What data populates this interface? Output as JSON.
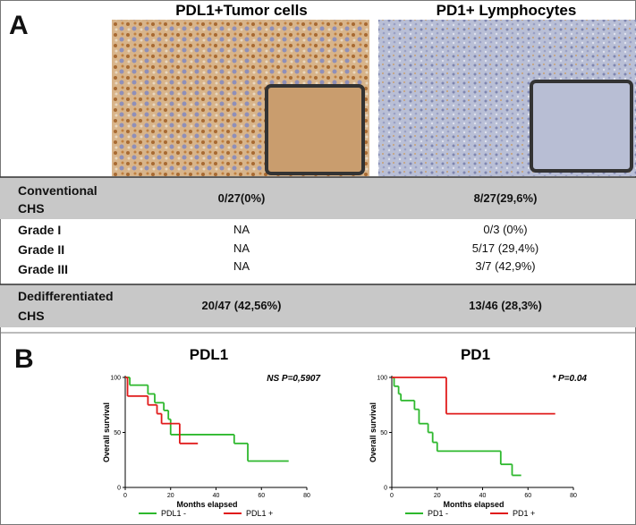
{
  "panel_a": {
    "label": "A",
    "columns": [
      "PDL1+Tumor cells",
      "PD1+ Lymphocytes"
    ],
    "rows": [
      [
        "Conventional CHS",
        "0/27(0%)",
        "8/27(29,6%)"
      ],
      [
        "Grade I",
        "NA",
        "0/3 (0%)"
      ],
      [
        "Grade II",
        "NA",
        "5/17 (29,4%)"
      ],
      [
        "Grade III",
        "NA",
        "3/7 (42,9%)"
      ],
      [
        "Dedifferentiated CHS",
        "20/47 (42,56%)",
        "13/46 (28,3%)"
      ]
    ]
  },
  "panel_b": {
    "label": "B"
  },
  "chart_data": [
    {
      "type": "step",
      "title": "PDL1",
      "annotation": "NS P=0,5907",
      "xlabel": "Months elapsed",
      "ylabel": "Overall survival",
      "xlim": [
        0,
        80
      ],
      "xticks": [
        0,
        20,
        40,
        60,
        80
      ],
      "ylim": [
        0,
        100
      ],
      "yticks": [
        0,
        50,
        100
      ],
      "series": [
        {
          "name": "PDL1 -",
          "color": "#2db82d",
          "x": [
            0,
            2,
            10,
            13,
            17,
            19,
            20,
            48,
            54,
            72
          ],
          "values": [
            100,
            93,
            85,
            77,
            70,
            62,
            48,
            40,
            24,
            24
          ]
        },
        {
          "name": "PDL1 +",
          "color": "#e01b1b",
          "x": [
            0,
            1,
            10,
            14,
            16,
            24,
            32
          ],
          "values": [
            100,
            83,
            75,
            67,
            58,
            40,
            40
          ]
        }
      ]
    },
    {
      "type": "step",
      "title": "PD1",
      "annotation": "* P=0.04",
      "xlabel": "Months elapsed",
      "ylabel": "Overall survival",
      "xlim": [
        0,
        80
      ],
      "xticks": [
        0,
        20,
        40,
        60,
        80
      ],
      "ylim": [
        0,
        100
      ],
      "yticks": [
        0,
        50,
        100
      ],
      "series": [
        {
          "name": "PD1 -",
          "color": "#2db82d",
          "x": [
            0,
            1,
            3,
            4,
            10,
            12,
            16,
            18,
            20,
            48,
            53,
            57
          ],
          "values": [
            100,
            92,
            85,
            79,
            71,
            58,
            50,
            41,
            33,
            21,
            11,
            11
          ]
        },
        {
          "name": "PD1 +",
          "color": "#e01b1b",
          "x": [
            0,
            24,
            72
          ],
          "values": [
            100,
            67,
            67
          ]
        }
      ]
    }
  ]
}
